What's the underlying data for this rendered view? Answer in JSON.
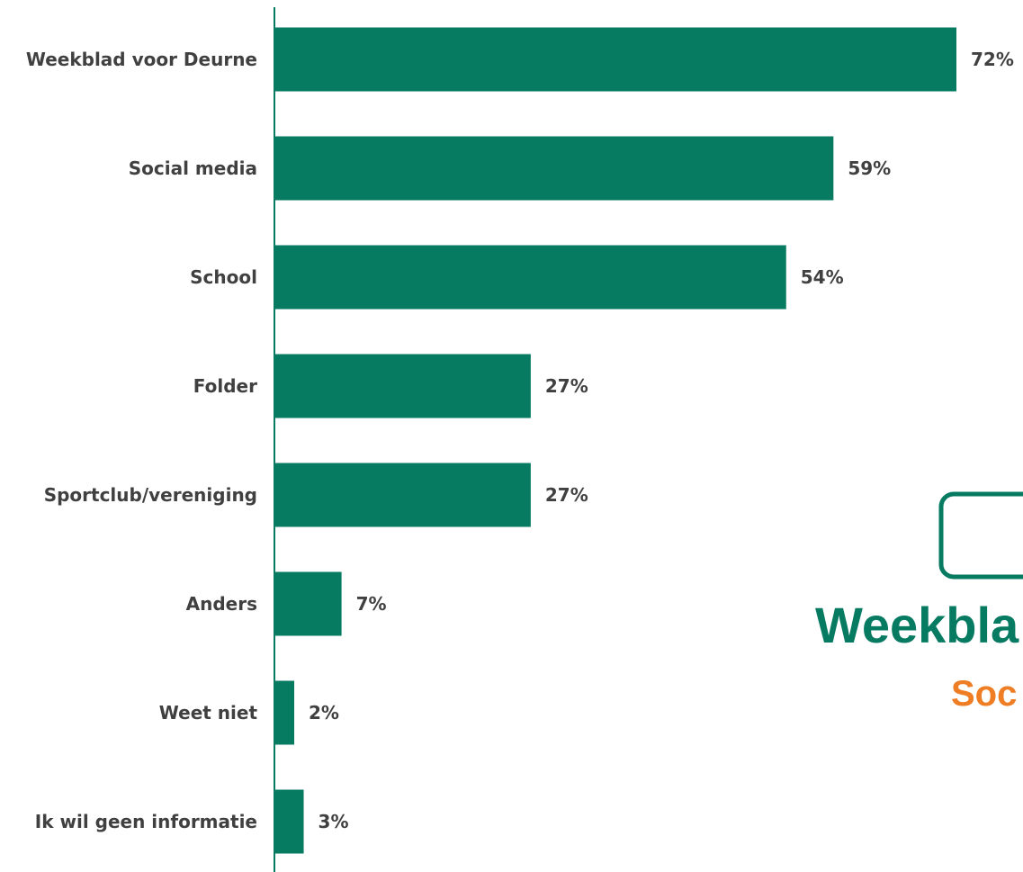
{
  "chart_data": {
    "type": "bar",
    "orientation": "horizontal",
    "categories": [
      "Weekblad voor Deurne",
      "Social media",
      "School",
      "Folder",
      "Sportclub/vereniging",
      "Anders",
      "Weet niet",
      "Ik wil geen informatie"
    ],
    "values": [
      72,
      59,
      54,
      27,
      27,
      7,
      2,
      3
    ],
    "value_labels": [
      "72%",
      "59%",
      "54%",
      "27%",
      "27%",
      "7%",
      "2%",
      "3%"
    ],
    "unit": "%",
    "xlim": [
      0,
      72
    ],
    "grid": false,
    "bar_color": "#077a62",
    "label_color": "#404040"
  },
  "watermark": {
    "title": "Weekbla",
    "subtitle": "Soc",
    "title_color": "#077a62",
    "subtitle_color": "#ee7d23"
  }
}
